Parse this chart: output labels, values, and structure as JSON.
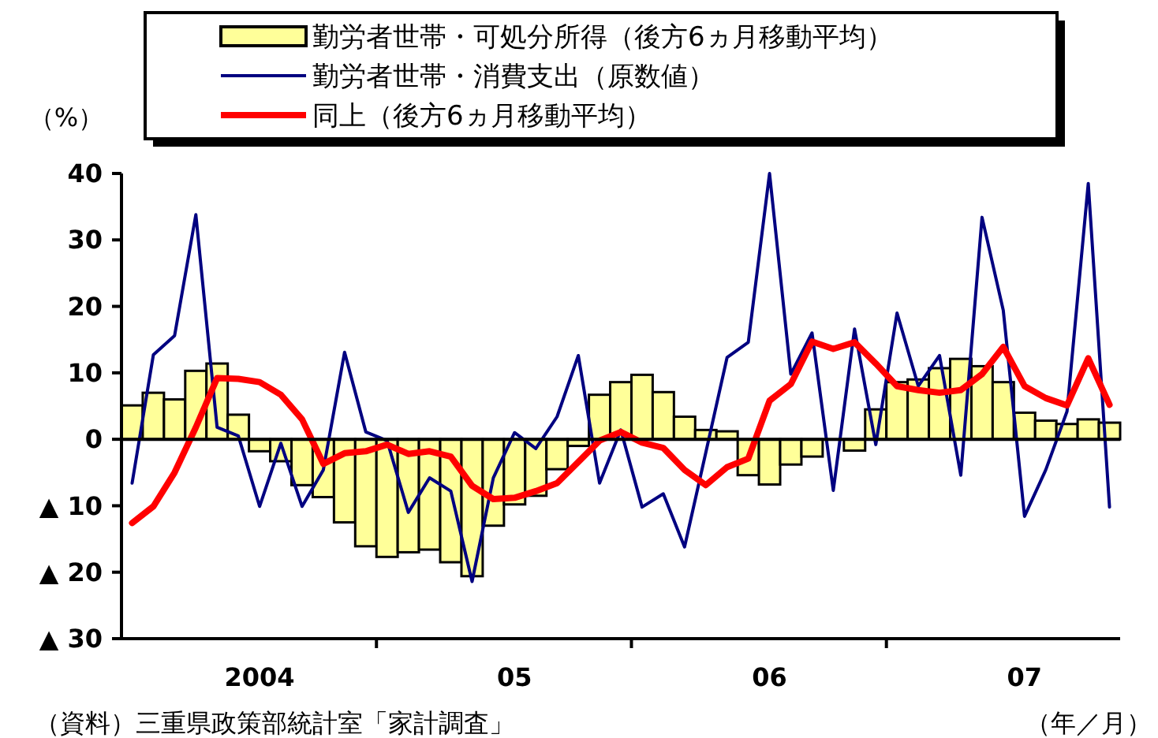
{
  "chart_data": {
    "type": "bar",
    "xlabel": "（年／月）",
    "ylabel": "（%）",
    "annotations": [
      "（資料）三重県政策部統計室「家計調査」"
    ],
    "categories": [
      null,
      null,
      null,
      null,
      null,
      null,
      "2004",
      null,
      null,
      null,
      null,
      null,
      null,
      null,
      null,
      null,
      null,
      null,
      "05",
      null,
      null,
      null,
      null,
      null,
      null,
      null,
      null,
      null,
      null,
      null,
      "06",
      null,
      null,
      null,
      null,
      null,
      null,
      null,
      null,
      null,
      null,
      null,
      "07",
      null,
      null,
      null,
      null
    ],
    "ref_lines": [
      {
        "axis": "y",
        "value": 0,
        "color": "#000000"
      }
    ],
    "ylim": [
      -30,
      40
    ],
    "yticks": [
      {
        "value": -30,
        "label": "▲ 30"
      },
      {
        "value": -20,
        "label": "▲ 20"
      },
      {
        "value": -10,
        "label": "▲ 10"
      },
      0,
      10,
      20,
      30,
      40
    ],
    "legend": "top",
    "series": [
      {
        "name": "勤労者世帯・可処分所得（後方6ヵ月移動平均）",
        "color": "#ffff99",
        "values": [
          5.1,
          7.0,
          6.0,
          10.3,
          11.4,
          3.7,
          -1.8,
          -3.3,
          -6.9,
          -8.7,
          -12.5,
          -16.1,
          -17.7,
          -17.0,
          -16.6,
          -18.5,
          -20.6,
          -13.0,
          -9.8,
          -8.5,
          -4.5,
          -1.0,
          6.7,
          8.6,
          9.7,
          7.1,
          3.4,
          1.4,
          1.2,
          -5.4,
          -6.8,
          -3.8,
          -2.6,
          null,
          -1.7,
          4.5,
          8.6,
          9.0,
          10.7,
          12.1,
          11.0,
          8.6,
          4.0,
          2.8,
          2.3,
          3.0,
          2.5
        ]
      },
      {
        "name": "勤労者世帯・消費支出（原数値）",
        "type": "line",
        "color": "#000080",
        "values": [
          -6.6,
          12.7,
          15.6,
          33.8,
          1.8,
          0.5,
          -10.1,
          -0.6,
          -10.1,
          -4.6,
          13.1,
          1.1,
          -0.2,
          -11.0,
          -5.8,
          -7.8,
          -21.4,
          -5.8,
          1.0,
          -1.4,
          3.4,
          12.6,
          -6.6,
          1.4,
          -10.2,
          -8.2,
          -16.2,
          -2.0,
          12.3,
          14.6,
          40.0,
          9.8,
          16.0,
          -7.7,
          16.6,
          -0.8,
          19.0,
          8.0,
          12.6,
          -5.4,
          33.4,
          19.4,
          -11.6,
          -4.6,
          4.2,
          38.5,
          -10.2
        ]
      },
      {
        "name": "同上（後方6ヵ月移動平均）",
        "type": "line",
        "color": "#ff0000",
        "values": [
          -12.6,
          -10.1,
          -5.0,
          1.8,
          9.2,
          9.1,
          8.6,
          6.7,
          3.0,
          -3.7,
          -2.1,
          -1.8,
          -0.8,
          -2.2,
          -1.8,
          -2.6,
          -7.0,
          -9.0,
          -8.8,
          -7.8,
          -6.6,
          -3.4,
          -0.2,
          1.1,
          -0.5,
          -1.3,
          -4.6,
          -6.9,
          -4.2,
          -2.9,
          5.8,
          8.3,
          14.7,
          13.6,
          14.6,
          11.4,
          8.0,
          7.4,
          7.0,
          7.4,
          9.8,
          13.9,
          8.0,
          6.2,
          5.1,
          12.2,
          5.2
        ]
      }
    ]
  }
}
